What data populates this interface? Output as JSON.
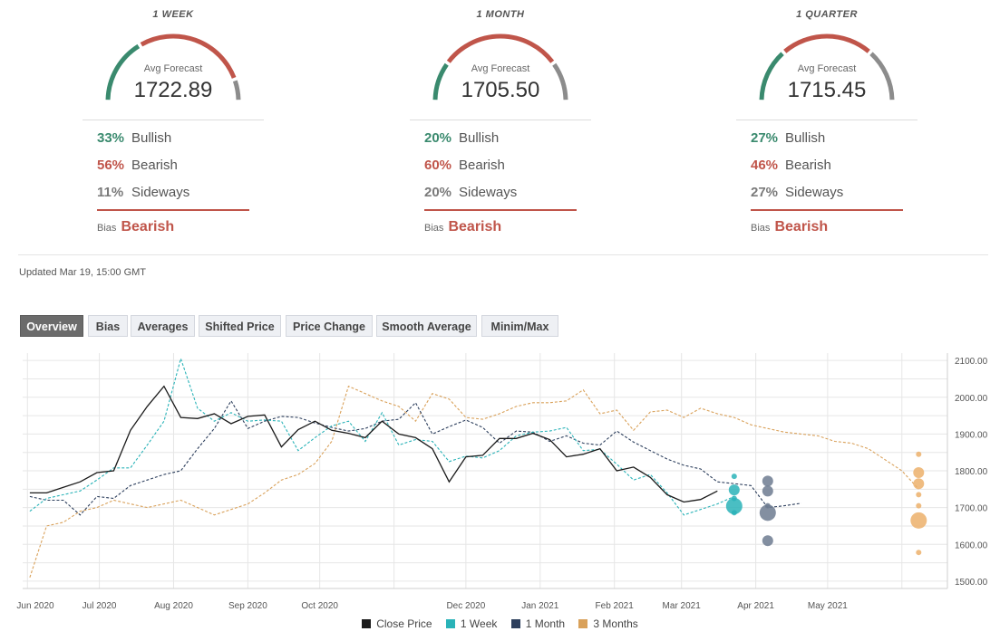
{
  "forecasts": [
    {
      "title": "1 WEEK",
      "avg_label": "Avg Forecast",
      "avg_value": "1722.89",
      "bullish_pct": "33%",
      "bullish_label": "Bullish",
      "bearish_pct": "56%",
      "bearish_label": "Bearish",
      "sideways_pct": "11%",
      "sideways_label": "Sideways",
      "bias_label": "Bias",
      "bias_value": "Bearish",
      "bull": 0.33,
      "bear": 0.56,
      "side": 0.11
    },
    {
      "title": "1 MONTH",
      "avg_label": "Avg Forecast",
      "avg_value": "1705.50",
      "bullish_pct": "20%",
      "bullish_label": "Bullish",
      "bearish_pct": "60%",
      "bearish_label": "Bearish",
      "sideways_pct": "20%",
      "sideways_label": "Sideways",
      "bias_label": "Bias",
      "bias_value": "Bearish",
      "bull": 0.2,
      "bear": 0.6,
      "side": 0.2
    },
    {
      "title": "1 QUARTER",
      "avg_label": "Avg Forecast",
      "avg_value": "1715.45",
      "bullish_pct": "27%",
      "bullish_label": "Bullish",
      "bearish_pct": "46%",
      "bearish_label": "Bearish",
      "sideways_pct": "27%",
      "sideways_label": "Sideways",
      "bias_label": "Bias",
      "bias_value": "Bearish",
      "bull": 0.27,
      "bear": 0.46,
      "side": 0.27
    }
  ],
  "colors": {
    "bullish": "#3a8a6e",
    "bearish": "#c0554a",
    "sideways": "#8c8c8c"
  },
  "updated": "Updated Mar 19, 15:00 GMT",
  "tabs": [
    "Overview",
    "Bias",
    "Averages",
    "Shifted Price",
    "Price Change",
    "Smooth Average",
    "Minim/Max"
  ],
  "active_tab": "Overview",
  "chart_data": {
    "type": "line",
    "x_ticks": [
      "Jun 2020",
      "Jul 2020",
      "Aug 2020",
      "Sep 2020",
      "Oct 2020",
      "Dec 2020",
      "Jan 2021",
      "Feb 2021",
      "Mar 2021",
      "Apr 2021",
      "May 2021"
    ],
    "y_ticks": [
      "2100.00",
      "2000.00",
      "1900.00",
      "1800.00",
      "1700.00",
      "1600.00",
      "1500.00"
    ],
    "ylim": [
      1480,
      2120
    ],
    "grid": true,
    "legend_position": "bottom",
    "series": [
      {
        "name": "Close Price",
        "color": "#1a1a1a",
        "dash": false,
        "x": [
          "2020-06-02",
          "2020-06-09",
          "2020-06-16",
          "2020-06-23",
          "2020-06-30",
          "2020-07-07",
          "2020-07-14",
          "2020-07-21",
          "2020-07-28",
          "2020-08-04",
          "2020-08-11",
          "2020-08-18",
          "2020-08-25",
          "2020-09-01",
          "2020-09-08",
          "2020-09-15",
          "2020-09-22",
          "2020-09-29",
          "2020-10-06",
          "2020-10-13",
          "2020-10-20",
          "2020-10-27",
          "2020-11-03",
          "2020-11-10",
          "2020-11-17",
          "2020-11-24",
          "2020-12-01",
          "2020-12-08",
          "2020-12-15",
          "2020-12-22",
          "2020-12-29",
          "2021-01-05",
          "2021-01-12",
          "2021-01-19",
          "2021-01-26",
          "2021-02-02",
          "2021-02-09",
          "2021-02-16",
          "2021-02-23",
          "2021-03-02",
          "2021-03-09",
          "2021-03-16"
        ],
        "values": [
          1740,
          1740,
          1755,
          1770,
          1795,
          1800,
          1910,
          1975,
          2030,
          1945,
          1942,
          1955,
          1928,
          1948,
          1952,
          1865,
          1912,
          1935,
          1910,
          1902,
          1890,
          1935,
          1900,
          1890,
          1860,
          1770,
          1838,
          1842,
          1888,
          1888,
          1902,
          1885,
          1838,
          1845,
          1860,
          1800,
          1810,
          1782,
          1735,
          1715,
          1722,
          1745
        ]
      },
      {
        "name": "1 Week",
        "color": "#2ab3b8",
        "dash": true,
        "x": [
          "2020-06-02",
          "2020-06-09",
          "2020-06-16",
          "2020-06-23",
          "2020-06-30",
          "2020-07-07",
          "2020-07-14",
          "2020-07-21",
          "2020-07-28",
          "2020-08-04",
          "2020-08-11",
          "2020-08-18",
          "2020-08-25",
          "2020-09-01",
          "2020-09-08",
          "2020-09-15",
          "2020-09-22",
          "2020-09-29",
          "2020-10-06",
          "2020-10-13",
          "2020-10-20",
          "2020-10-27",
          "2020-11-03",
          "2020-11-10",
          "2020-11-17",
          "2020-11-24",
          "2020-12-01",
          "2020-12-08",
          "2020-12-15",
          "2020-12-22",
          "2020-12-29",
          "2021-01-05",
          "2021-01-12",
          "2021-01-19",
          "2021-01-26",
          "2021-02-02",
          "2021-02-09",
          "2021-02-16",
          "2021-02-23",
          "2021-03-02",
          "2021-03-09",
          "2021-03-16",
          "2021-03-23"
        ],
        "values": [
          1690,
          1725,
          1735,
          1745,
          1775,
          1808,
          1808,
          1870,
          1935,
          2105,
          1970,
          1935,
          1958,
          1935,
          1938,
          1935,
          1855,
          1890,
          1922,
          1935,
          1880,
          1958,
          1870,
          1885,
          1880,
          1825,
          1840,
          1835,
          1855,
          1895,
          1905,
          1908,
          1918,
          1855,
          1858,
          1818,
          1775,
          1790,
          1740,
          1680,
          1695,
          1710,
          1730
        ]
      },
      {
        "name": "1 Month",
        "color": "#2c3e5c",
        "dash": true,
        "x": [
          "2020-06-02",
          "2020-06-09",
          "2020-06-16",
          "2020-06-23",
          "2020-06-30",
          "2020-07-07",
          "2020-07-14",
          "2020-07-21",
          "2020-07-28",
          "2020-08-04",
          "2020-08-11",
          "2020-08-18",
          "2020-08-25",
          "2020-09-01",
          "2020-09-08",
          "2020-09-15",
          "2020-09-22",
          "2020-09-29",
          "2020-10-06",
          "2020-10-13",
          "2020-10-20",
          "2020-10-27",
          "2020-11-03",
          "2020-11-10",
          "2020-11-17",
          "2020-11-24",
          "2020-12-01",
          "2020-12-08",
          "2020-12-15",
          "2020-12-22",
          "2020-12-29",
          "2021-01-05",
          "2021-01-12",
          "2021-01-19",
          "2021-01-26",
          "2021-02-02",
          "2021-02-09",
          "2021-02-16",
          "2021-02-23",
          "2021-03-02",
          "2021-03-09",
          "2021-03-16",
          "2021-03-23",
          "2021-03-30",
          "2021-04-06",
          "2021-04-13",
          "2021-04-20"
        ],
        "values": [
          1730,
          1720,
          1720,
          1680,
          1730,
          1725,
          1760,
          1775,
          1790,
          1800,
          1860,
          1915,
          1990,
          1915,
          1935,
          1948,
          1945,
          1930,
          1918,
          1908,
          1915,
          1935,
          1940,
          1985,
          1900,
          1920,
          1938,
          1918,
          1875,
          1908,
          1905,
          1880,
          1895,
          1875,
          1870,
          1908,
          1878,
          1855,
          1832,
          1815,
          1805,
          1770,
          1765,
          1760,
          1700,
          1705,
          1712
        ]
      },
      {
        "name": "3 Months",
        "color": "#d9a15a",
        "dash": true,
        "x": [
          "2020-06-02",
          "2020-06-09",
          "2020-06-16",
          "2020-06-23",
          "2020-06-30",
          "2020-07-07",
          "2020-07-14",
          "2020-07-21",
          "2020-07-28",
          "2020-08-04",
          "2020-08-11",
          "2020-08-18",
          "2020-08-25",
          "2020-09-01",
          "2020-09-08",
          "2020-09-15",
          "2020-09-22",
          "2020-09-29",
          "2020-10-06",
          "2020-10-13",
          "2020-10-20",
          "2020-10-27",
          "2020-11-03",
          "2020-11-10",
          "2020-11-17",
          "2020-11-24",
          "2020-12-01",
          "2020-12-08",
          "2020-12-15",
          "2020-12-22",
          "2020-12-29",
          "2021-01-05",
          "2021-01-12",
          "2021-01-19",
          "2021-01-26",
          "2021-02-02",
          "2021-02-09",
          "2021-02-16",
          "2021-02-23",
          "2021-03-02",
          "2021-03-09",
          "2021-03-16",
          "2021-03-23",
          "2021-03-30",
          "2021-04-06",
          "2021-04-13",
          "2021-04-20",
          "2021-04-27",
          "2021-05-04",
          "2021-05-11",
          "2021-05-18",
          "2021-05-25",
          "2021-06-01",
          "2021-06-08"
        ],
        "values": [
          1510,
          1650,
          1660,
          1690,
          1700,
          1720,
          1710,
          1700,
          1710,
          1720,
          1700,
          1680,
          1695,
          1710,
          1740,
          1775,
          1790,
          1820,
          1880,
          2030,
          2010,
          1990,
          1975,
          1935,
          2010,
          1995,
          1945,
          1940,
          1955,
          1975,
          1985,
          1985,
          1990,
          2020,
          1955,
          1965,
          1910,
          1960,
          1965,
          1945,
          1970,
          1955,
          1945,
          1925,
          1915,
          1905,
          1900,
          1895,
          1880,
          1875,
          1860,
          1830,
          1800,
          1750
        ]
      }
    ],
    "forecast_points": [
      {
        "horizon": "1 Week",
        "color": "#2ab3b8",
        "x": "2021-03-23",
        "points": [
          {
            "y": 1785,
            "size": 1
          },
          {
            "y": 1748,
            "size": 2
          },
          {
            "y": 1725,
            "size": 1
          },
          {
            "y": 1704,
            "size": 3
          },
          {
            "y": 1686,
            "size": 1
          }
        ]
      },
      {
        "horizon": "1 Month",
        "color": "#6d7b91",
        "x": "2021-04-06",
        "points": [
          {
            "y": 1772,
            "size": 2
          },
          {
            "y": 1745,
            "size": 2
          },
          {
            "y": 1705,
            "size": 1
          },
          {
            "y": 1686,
            "size": 3
          },
          {
            "y": 1610,
            "size": 2
          }
        ]
      },
      {
        "horizon": "3 Months",
        "color": "#ecb06b",
        "x": "2021-06-08",
        "points": [
          {
            "y": 1845,
            "size": 1
          },
          {
            "y": 1795,
            "size": 2
          },
          {
            "y": 1765,
            "size": 2
          },
          {
            "y": 1735,
            "size": 1
          },
          {
            "y": 1705,
            "size": 1
          },
          {
            "y": 1665,
            "size": 3
          },
          {
            "y": 1578,
            "size": 1
          }
        ]
      }
    ]
  }
}
